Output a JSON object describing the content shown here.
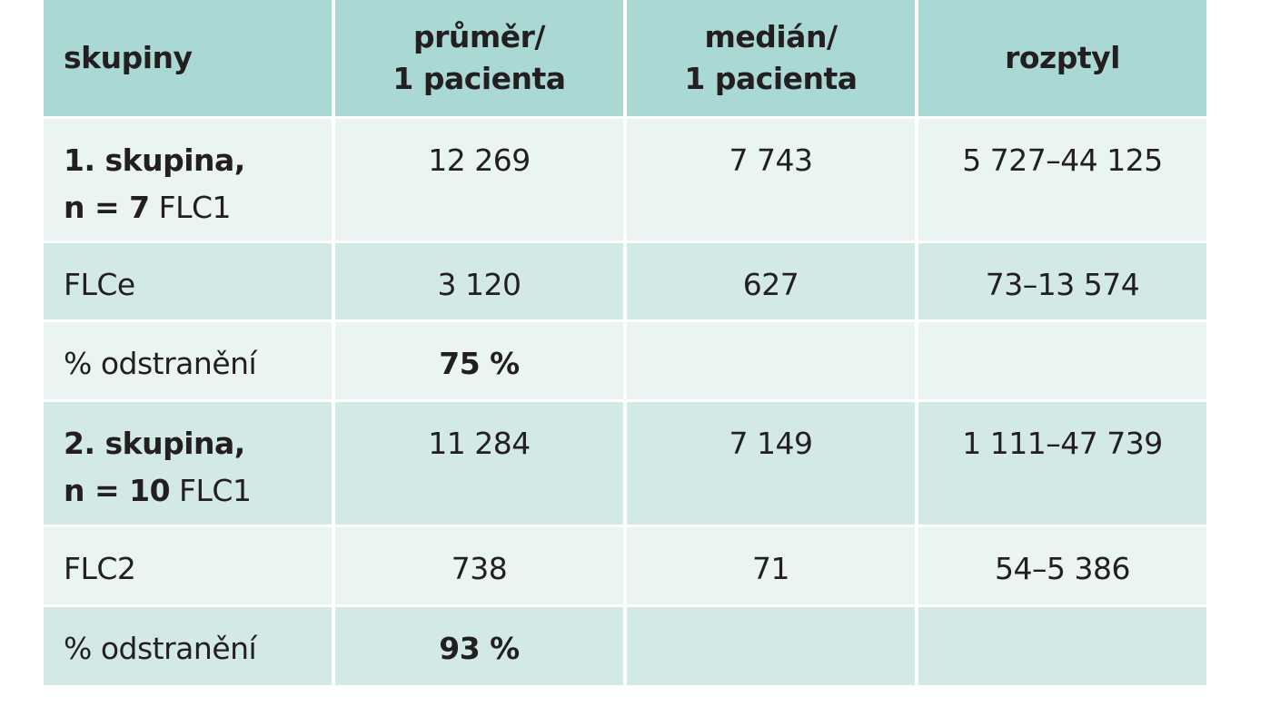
{
  "table": {
    "columns": [
      [
        "skupiny"
      ],
      [
        "průměr/",
        "1 pacienta"
      ],
      [
        "medián/",
        "1 pacienta"
      ],
      [
        "rozptyl"
      ]
    ],
    "rows": [
      {
        "group": "1. skupina,",
        "n": "n = 7",
        "measure": "FLC1",
        "mean": "12 269",
        "median": "7 743",
        "range": "5 727–44 125"
      },
      {
        "measure": "FLCe",
        "mean": "3 120",
        "median": "627",
        "range": "73–13 574"
      },
      {
        "measure": "% odstranění",
        "mean": "75 %"
      },
      {
        "group": "2. skupina,",
        "n": "n = 10",
        "measure": "FLC1",
        "mean": "11 284",
        "median": "7 149",
        "range": "1 111–47 739"
      },
      {
        "measure": "FLC2",
        "mean": "738",
        "median": "71",
        "range": "54–5 386"
      },
      {
        "measure": "% odstranění",
        "mean": "93 %"
      }
    ]
  }
}
